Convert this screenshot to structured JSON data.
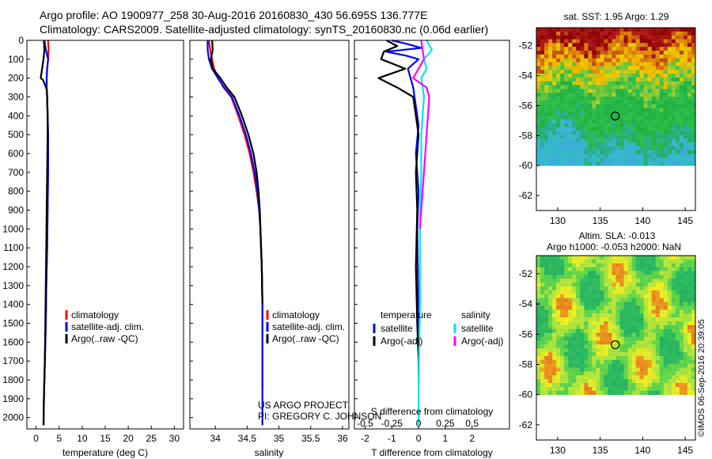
{
  "header": {
    "line1": "Argo profile: AO 1900977_258 30-Aug-2016 20160830_430 56.695S 136.777E",
    "line2": "Climatology: CARS2009. Satellite-adjusted climatology: synTS_20160830.nc (0.06d earlier)"
  },
  "credits": {
    "project": "US ARGO PROJECT",
    "pi": "PI: GREGORY C. JOHNSON",
    "imos": "©IMOS 06-Sep-2016 20:39:05"
  },
  "colors": {
    "climatology": "#ff0000",
    "satellite": "#0000ff",
    "argo": "#000000",
    "sal_satellite": "#00e5ee",
    "sal_argo": "#ff00ff"
  },
  "chart_data": [
    {
      "type": "line",
      "id": "temperature",
      "xlabel": "temperature (deg C)",
      "xlim": [
        -2,
        32
      ],
      "ylim": [
        2060,
        0
      ],
      "xticks": [
        0,
        5,
        10,
        15,
        20,
        25,
        30
      ],
      "yticks": [
        0,
        100,
        200,
        300,
        400,
        500,
        600,
        700,
        800,
        900,
        1000,
        1100,
        1200,
        1300,
        1400,
        1500,
        1600,
        1700,
        1800,
        1900,
        2000
      ],
      "legend": [
        "climatology",
        "satellite-adj. clim.",
        "Argo(..raw -QC)"
      ],
      "series": [
        {
          "name": "climatology",
          "color": "#ff0000",
          "x": [
            2.6,
            2.7,
            2.6,
            2.4,
            2.3,
            2.3,
            2.4,
            2.5,
            2.6,
            2.6,
            2.5,
            2.4,
            2.2,
            2.1,
            2.0,
            1.9,
            1.8,
            1.7,
            1.6
          ],
          "y": [
            0,
            50,
            100,
            150,
            200,
            250,
            300,
            400,
            500,
            700,
            900,
            1100,
            1300,
            1500,
            1600,
            1700,
            1800,
            1900,
            2040
          ]
        },
        {
          "name": "satellite-adj. clim.",
          "color": "#0000ff",
          "x": [
            1.8,
            2.1,
            2.6,
            2.4,
            2.3,
            2.3,
            2.4,
            2.5,
            2.6,
            2.6,
            2.5,
            2.4,
            2.2,
            2.1,
            2.0,
            1.9,
            1.8,
            1.7,
            1.6
          ],
          "y": [
            0,
            50,
            100,
            150,
            200,
            250,
            300,
            400,
            500,
            700,
            900,
            1100,
            1300,
            1500,
            1600,
            1700,
            1800,
            1900,
            2040
          ]
        },
        {
          "name": "Argo(..raw -QC)",
          "color": "#000000",
          "x": [
            1.7,
            1.8,
            1.6,
            1.3,
            1.0,
            1.5,
            2.0,
            2.3,
            2.4,
            2.5,
            2.5,
            2.4,
            2.3,
            2.2,
            2.1,
            2.0,
            1.9,
            1.8,
            1.7,
            1.6
          ],
          "y": [
            0,
            50,
            100,
            150,
            200,
            210,
            240,
            260,
            300,
            400,
            500,
            700,
            900,
            1100,
            1300,
            1500,
            1700,
            1800,
            1900,
            2040
          ]
        }
      ]
    },
    {
      "type": "line",
      "id": "salinity",
      "xlabel": "salinity",
      "xlim": [
        33.6,
        36.1
      ],
      "ylim": [
        2060,
        0
      ],
      "xticks": [
        34,
        34.5,
        35,
        35.5,
        36
      ],
      "legend": [
        "climatology",
        "satellite-adj. clim.",
        "Argo(..raw -QC)"
      ],
      "series": [
        {
          "name": "climatology",
          "color": "#ff0000",
          "x": [
            33.9,
            33.92,
            33.95,
            33.98,
            34.05,
            34.13,
            34.25,
            34.36,
            34.46,
            34.54,
            34.6,
            34.65,
            34.69,
            34.71,
            34.72,
            34.73,
            34.74,
            34.74
          ],
          "y": [
            0,
            50,
            100,
            150,
            200,
            250,
            300,
            400,
            500,
            600,
            700,
            800,
            900,
            1000,
            1100,
            1200,
            1400,
            1850
          ]
        },
        {
          "name": "satellite-adj. clim.",
          "color": "#0000ff",
          "x": [
            33.88,
            33.88,
            33.9,
            33.95,
            34.04,
            34.14,
            34.26,
            34.38,
            34.48,
            34.56,
            34.62,
            34.66,
            34.69,
            34.71,
            34.72,
            34.73,
            34.74,
            34.74,
            34.74
          ],
          "y": [
            0,
            50,
            100,
            150,
            200,
            250,
            300,
            400,
            500,
            600,
            700,
            800,
            900,
            1000,
            1100,
            1200,
            1400,
            1900,
            2040
          ]
        },
        {
          "name": "Argo(..raw -QC)",
          "color": "#000000",
          "x": [
            33.95,
            33.96,
            33.93,
            33.96,
            34.08,
            34.18,
            34.3,
            34.42,
            34.52,
            34.6,
            34.65,
            34.68,
            34.7,
            34.71,
            34.72,
            34.73,
            34.74
          ],
          "y": [
            0,
            50,
            100,
            150,
            200,
            250,
            300,
            400,
            500,
            600,
            700,
            800,
            900,
            1000,
            1100,
            1200,
            1400
          ]
        }
      ]
    },
    {
      "type": "line",
      "id": "difference",
      "xlabel": "T difference from climatology",
      "x2label": "S difference from climatology",
      "xlim": [
        -2.4,
        3.4
      ],
      "ylim": [
        2060,
        0
      ],
      "xticks": [
        -2,
        -1,
        0,
        1,
        2
      ],
      "x2ticks": [
        "-0.5",
        "-0.25",
        "0",
        "0.25",
        "0.5"
      ],
      "legend_headers": [
        "temperature",
        "salinity"
      ],
      "legend": [
        "satellite",
        "Argo(-adj)",
        "satellite",
        "Argo(-adj)"
      ],
      "series": [
        {
          "name": "satellite",
          "group": "temperature",
          "color": "#0000ff",
          "x": [
            -1.0,
            -0.4,
            0.1,
            -1.2,
            -0.5,
            0.0,
            -0.4,
            -0.2,
            -0.1,
            0.0,
            -0.1,
            0.0,
            -0.05,
            -0.02,
            0.0,
            0.0
          ],
          "y": [
            0,
            20,
            40,
            60,
            80,
            100,
            150,
            250,
            350,
            450,
            600,
            800,
            1000,
            1300,
            1600,
            1700
          ]
        },
        {
          "name": "Argo(-adj)",
          "group": "temperature",
          "color": "#000000",
          "x": [
            -1.2,
            -0.8,
            -1.3,
            -1.4,
            -0.5,
            -1.5,
            -0.8,
            -0.2,
            -0.1,
            0.0,
            -0.1,
            -0.05,
            -0.1,
            -0.05,
            0.0,
            0.0
          ],
          "y": [
            0,
            30,
            60,
            100,
            150,
            200,
            250,
            300,
            400,
            500,
            700,
            900,
            1200,
            1500,
            1700,
            1820
          ]
        },
        {
          "name": "satellite",
          "group": "salinity",
          "color": "#00e5ee",
          "x": [
            0.3,
            0.5,
            0.2,
            0.3,
            0.1,
            0.2,
            0.1,
            0.1,
            0.05,
            0.05,
            0.0,
            0.0
          ],
          "y": [
            0,
            50,
            100,
            150,
            200,
            300,
            500,
            700,
            1000,
            1400,
            1800,
            2040
          ]
        },
        {
          "name": "Argo(-adj)",
          "group": "salinity",
          "color": "#ff00ff",
          "x": [
            0.1,
            0.2,
            -0.2,
            0.3,
            0.4,
            0.35,
            0.3,
            0.25,
            0.2,
            0.15,
            0.1,
            0.05
          ],
          "y": [
            0,
            100,
            200,
            250,
            300,
            400,
            500,
            600,
            700,
            800,
            900,
            1000
          ]
        }
      ]
    },
    {
      "type": "heatmap",
      "id": "sst-map",
      "title": "sat. SST: 1.95 Argo: 1.29",
      "xlim": [
        127.5,
        146.2
      ],
      "ylim": [
        -63,
        -50.8
      ],
      "xticks": [
        130,
        135,
        140,
        145
      ],
      "yticks": [
        -52,
        -54,
        -56,
        -58,
        -60,
        -62
      ],
      "marker": {
        "lon": 136.777,
        "lat": -56.695
      },
      "data_lat_min": -60
    },
    {
      "type": "heatmap",
      "id": "sla-map",
      "title": "Altim. SLA: -0.013",
      "subtitle": "Argo h1000: -0.053 h2000: NaN",
      "xlim": [
        127.5,
        146.2
      ],
      "ylim": [
        -63,
        -50.8
      ],
      "xticks": [
        130,
        135,
        140,
        145
      ],
      "yticks": [
        -52,
        -54,
        -56,
        -58,
        -60,
        -62
      ],
      "marker": {
        "lon": 136.777,
        "lat": -56.695
      },
      "data_lat_min": -60
    }
  ]
}
